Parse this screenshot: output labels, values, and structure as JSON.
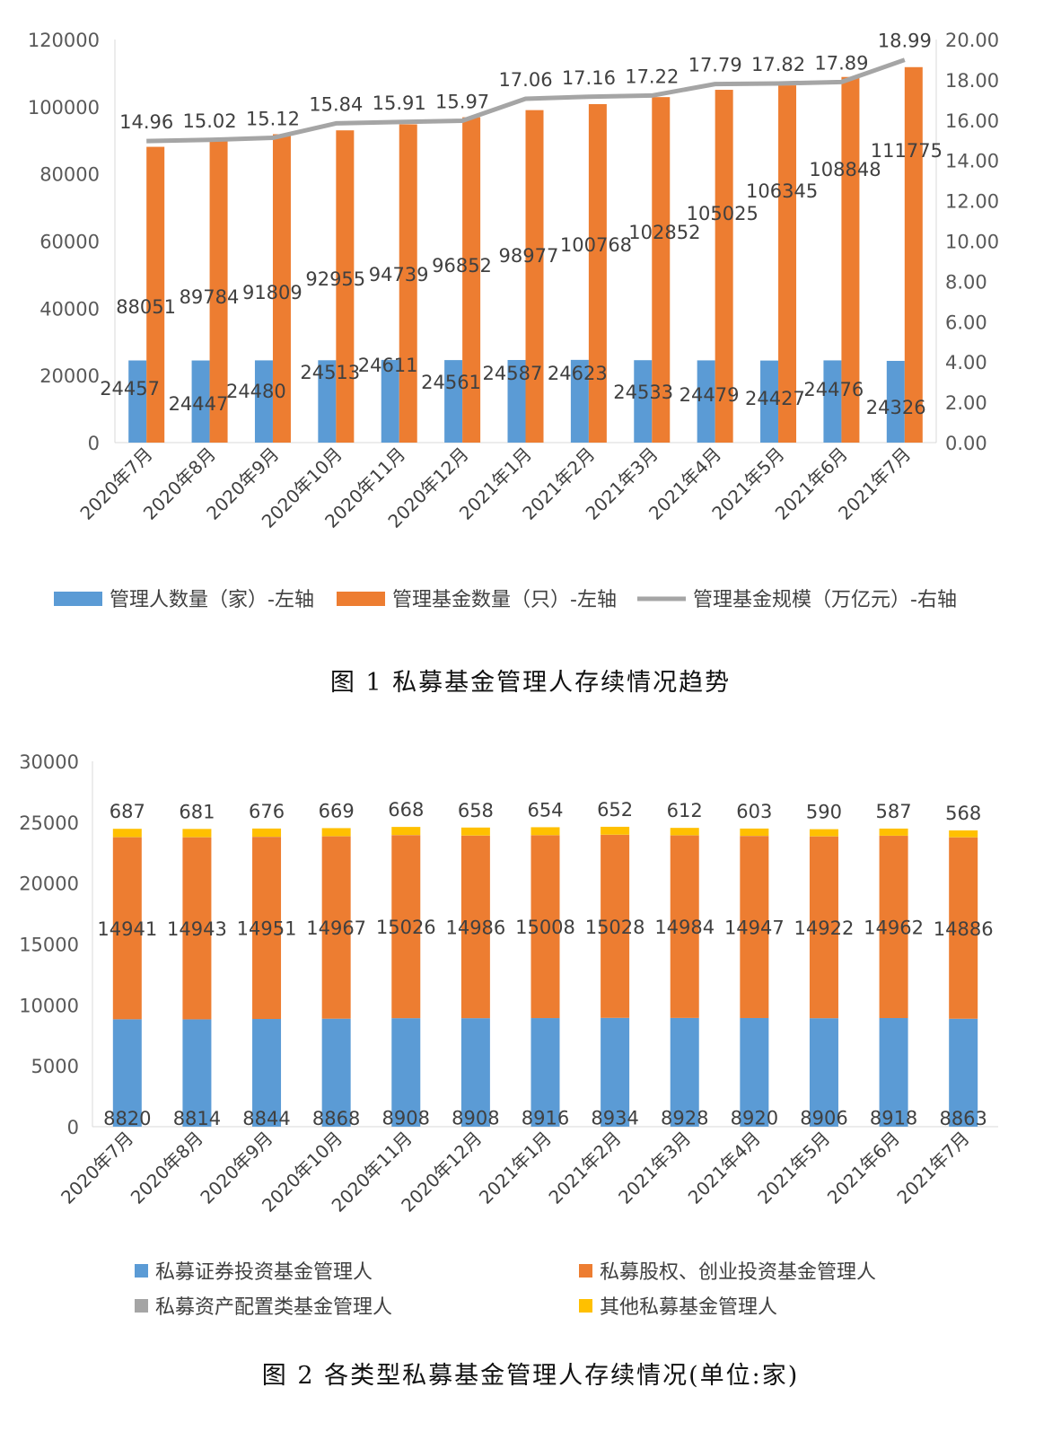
{
  "chart_data": [
    {
      "type": "bar",
      "caption": "图 1  私募基金管理人存续情况趋势",
      "categories": [
        "2020年7月",
        "2020年8月",
        "2020年9月",
        "2020年10月",
        "2020年11月",
        "2020年12月",
        "2021年1月",
        "2021年2月",
        "2021年3月",
        "2021年4月",
        "2021年5月",
        "2021年6月",
        "2021年7月"
      ],
      "series": [
        {
          "name": "管理人数量（家）-左轴",
          "type": "bar",
          "axis": "left",
          "color": "#5B9BD5",
          "values": [
            24457,
            24447,
            24480,
            24513,
            24611,
            24561,
            24587,
            24623,
            24533,
            24479,
            24427,
            24476,
            24326
          ]
        },
        {
          "name": "管理基金数量（只）-左轴",
          "type": "bar",
          "axis": "left",
          "color": "#ED7D31",
          "values": [
            88051,
            89784,
            91809,
            92955,
            94739,
            96852,
            98977,
            100768,
            102852,
            105025,
            106345,
            108848,
            111775
          ]
        },
        {
          "name": "管理基金规模（万亿元）-右轴",
          "type": "line",
          "axis": "right",
          "color": "#A5A5A5",
          "values": [
            14.96,
            15.02,
            15.12,
            15.84,
            15.91,
            15.97,
            17.06,
            17.16,
            17.22,
            17.79,
            17.82,
            17.89,
            18.99
          ]
        }
      ],
      "ylim_left": [
        0,
        120000
      ],
      "yticks_left": [
        "0",
        "20000",
        "40000",
        "60000",
        "80000",
        "100000",
        "120000"
      ],
      "ylim_right": [
        0,
        20
      ],
      "yticks_right": [
        "0.00",
        "2.00",
        "4.00",
        "6.00",
        "8.00",
        "10.00",
        "12.00",
        "14.00",
        "16.00",
        "18.00",
        "20.00"
      ],
      "legend": "bottom",
      "grid": false
    },
    {
      "type": "bar",
      "stacked": true,
      "caption": "图 2  各类型私募基金管理人存续情况(单位:家)",
      "categories": [
        "2020年7月",
        "2020年8月",
        "2020年9月",
        "2020年10月",
        "2020年11月",
        "2020年12月",
        "2021年1月",
        "2021年2月",
        "2021年3月",
        "2021年4月",
        "2021年5月",
        "2021年6月",
        "2021年7月"
      ],
      "series": [
        {
          "name": "私募证券投资基金管理人",
          "color": "#5B9BD5",
          "values": [
            8820,
            8814,
            8844,
            8868,
            8908,
            8908,
            8916,
            8934,
            8928,
            8920,
            8906,
            8918,
            8863
          ]
        },
        {
          "name": "私募股权、创业投资基金管理人",
          "color": "#ED7D31",
          "values": [
            14941,
            14943,
            14951,
            14967,
            15026,
            14986,
            15008,
            15028,
            14984,
            14947,
            14922,
            14962,
            14886
          ]
        },
        {
          "name": "私募资产配置类基金管理人",
          "color": "#A5A5A5",
          "values": [
            9,
            9,
            9,
            9,
            9,
            9,
            9,
            9,
            9,
            9,
            9,
            9,
            9
          ]
        },
        {
          "name": "其他私募基金管理人",
          "color": "#FFC000",
          "values": [
            687,
            681,
            676,
            669,
            668,
            658,
            654,
            652,
            612,
            603,
            590,
            587,
            568
          ]
        }
      ],
      "ylim": [
        0,
        30000
      ],
      "yticks": [
        "0",
        "5000",
        "10000",
        "15000",
        "20000",
        "25000",
        "30000"
      ],
      "legend": "bottom",
      "grid": false
    }
  ]
}
